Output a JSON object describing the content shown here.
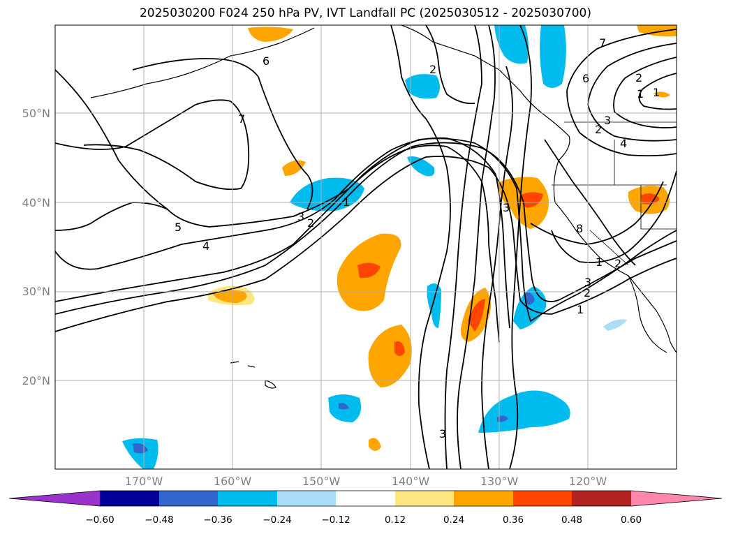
{
  "title": "2025030200 F024 250 hPa PV, IVT Landfall PC (2025030512 - 2025030700)",
  "map": {
    "projection": "PlateCarree",
    "extent": {
      "lon": [
        -180,
        -110
      ],
      "lat": [
        10,
        60
      ]
    },
    "lat_labels": [
      "50°N",
      "40°N",
      "30°N",
      "20°N"
    ],
    "lon_labels": [
      "170°W",
      "160°W",
      "150°W",
      "140°W",
      "130°W",
      "120°W"
    ],
    "contour_color": "#000000",
    "contour_labels": [
      "7",
      "6",
      "5",
      "4",
      "3",
      "2",
      "1",
      "2",
      "3",
      "1",
      "6",
      "7",
      "2",
      "1",
      "4",
      "3",
      "2",
      "8",
      "3",
      "2",
      "1",
      "2",
      "1",
      "3"
    ]
  },
  "colorbar": {
    "ticks": [
      "−0.60",
      "−0.48",
      "−0.36",
      "−0.24",
      "−0.12",
      "0.12",
      "0.24",
      "0.36",
      "0.48",
      "0.60"
    ],
    "colors": [
      "#9933cc",
      "#000099",
      "#3366cc",
      "#00bbee",
      "#aaddf8",
      "#ffffff",
      "#ffe680",
      "#ffa500",
      "#ff4500",
      "#b22222",
      "#ff88aa"
    ],
    "extend": "both"
  }
}
